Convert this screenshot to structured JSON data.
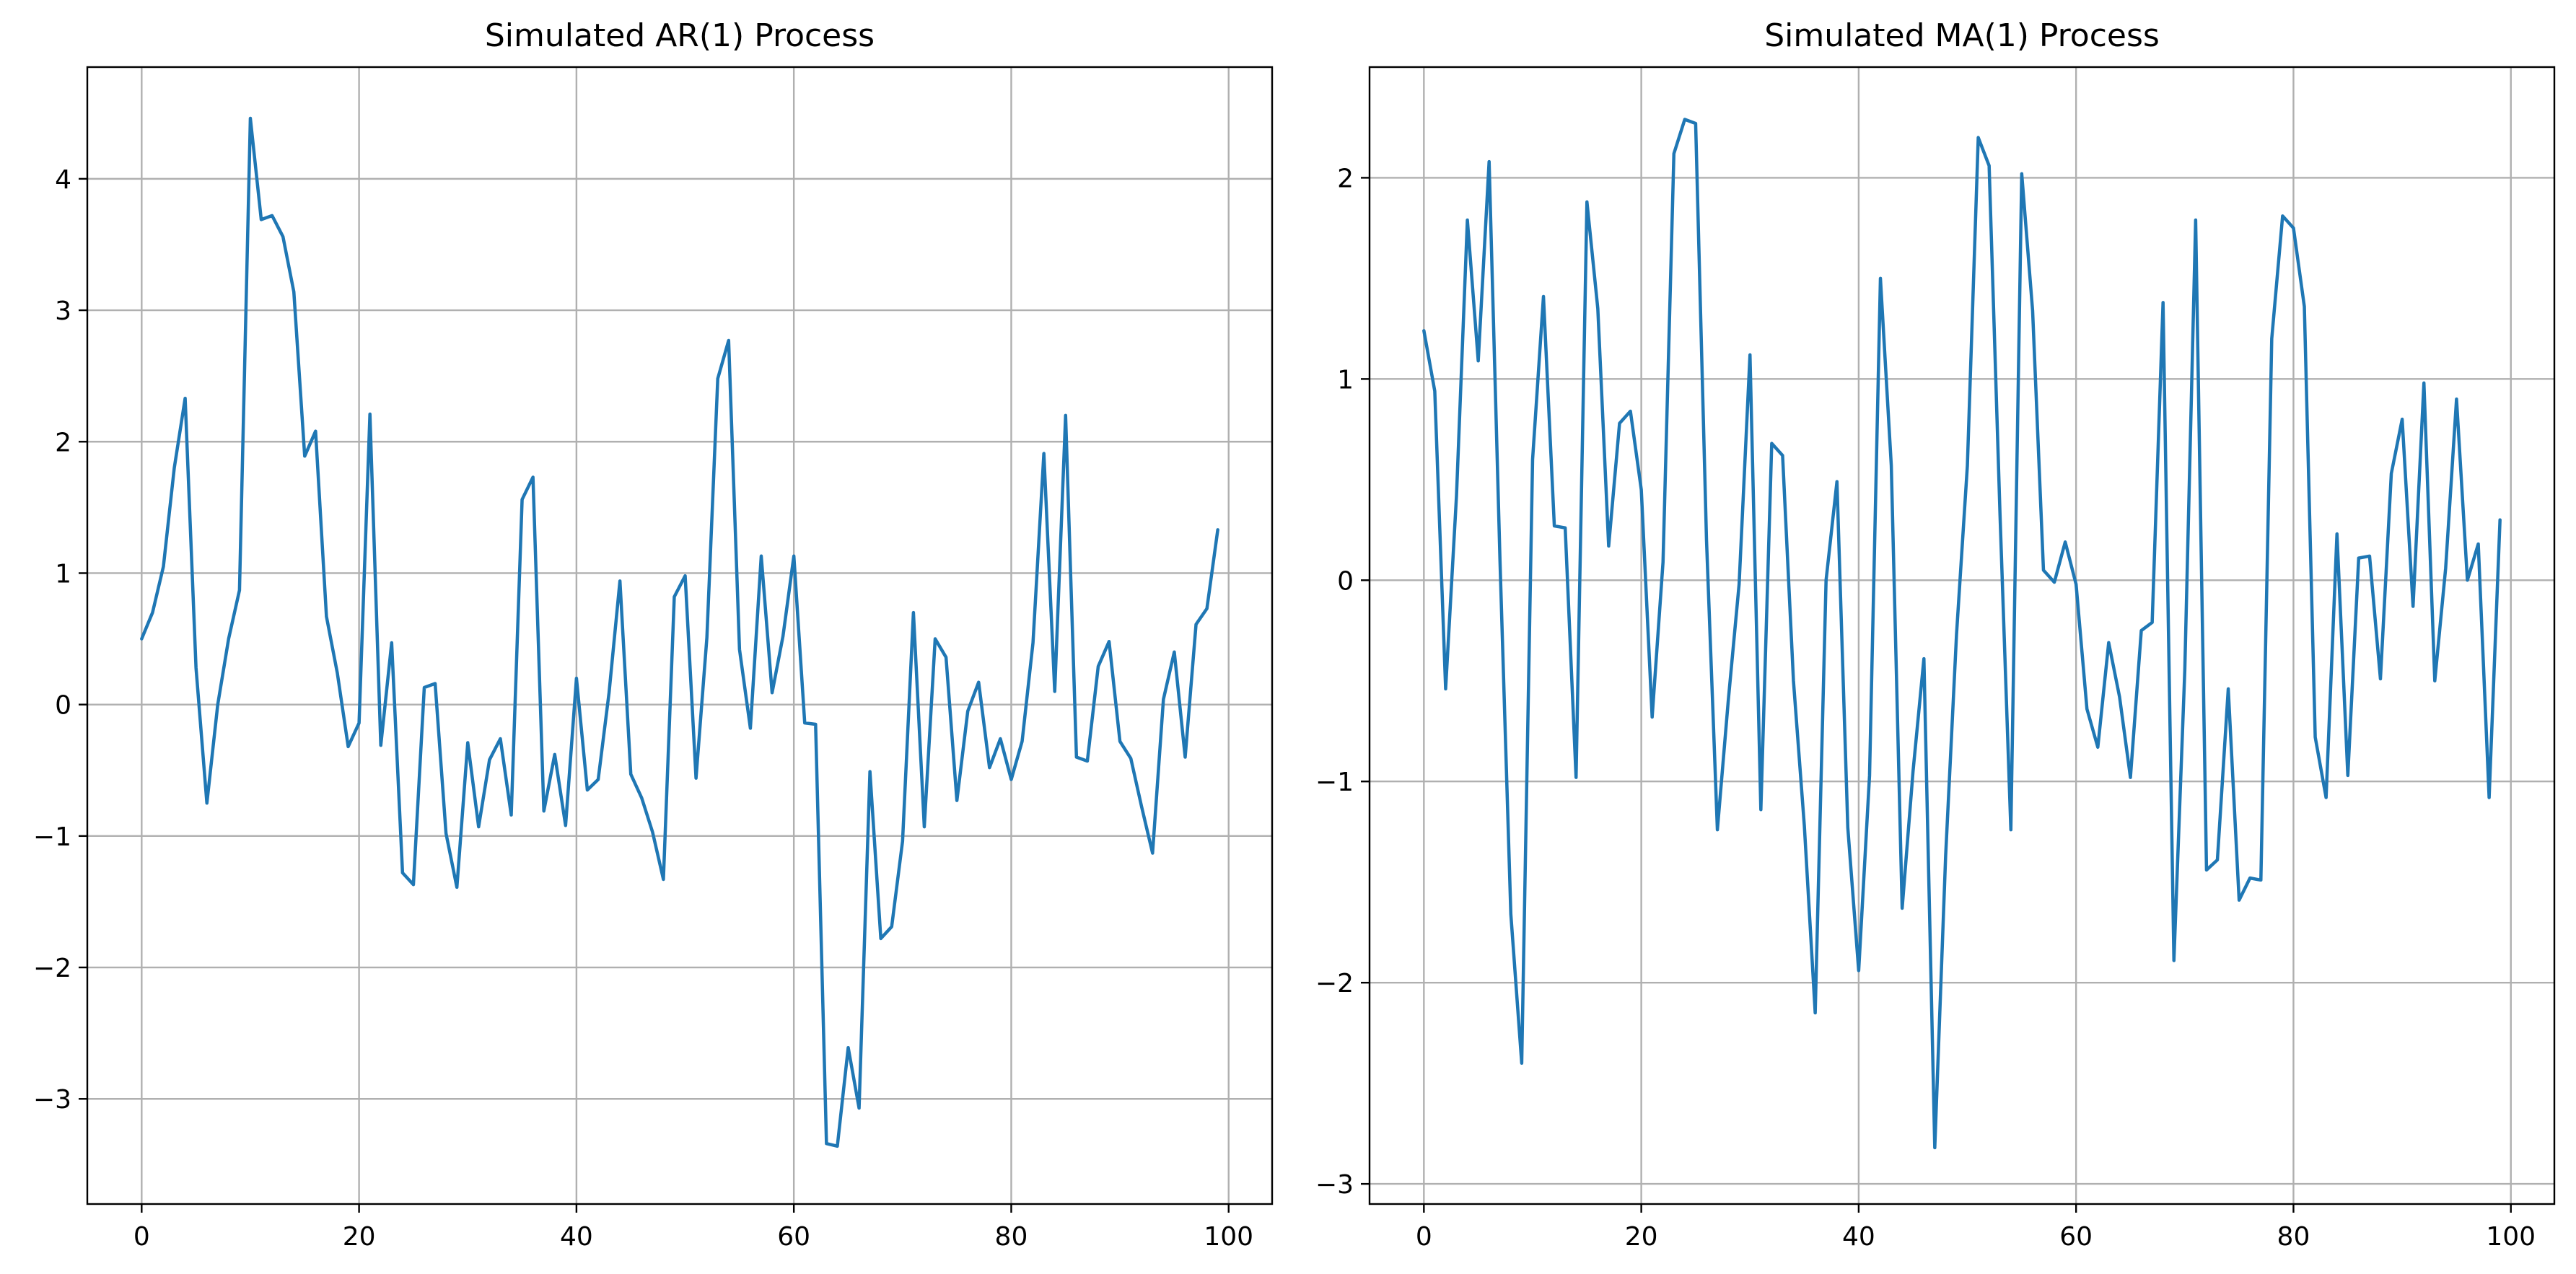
{
  "chart_data": [
    {
      "type": "line",
      "title": "Simulated AR(1) Process",
      "xlabel": "",
      "ylabel": "",
      "xlim": [
        -5,
        104
      ],
      "ylim": [
        -3.8,
        4.85
      ],
      "xticks": [
        0,
        20,
        40,
        60,
        80,
        100
      ],
      "yticks": [
        -3,
        -2,
        -1,
        0,
        1,
        2,
        3,
        4
      ],
      "grid": true,
      "color": "#1f77b4",
      "series": [
        {
          "values": [
            0.5,
            0.7,
            1.05,
            1.8,
            2.33,
            0.28,
            -0.75,
            0.0,
            0.5,
            0.87,
            4.46,
            3.69,
            3.72,
            3.56,
            3.14,
            1.89,
            2.08,
            0.67,
            0.24,
            -0.32,
            -0.14,
            2.21,
            -0.31,
            0.47,
            -1.28,
            -1.37,
            0.13,
            0.16,
            -0.98,
            -1.39,
            -0.29,
            -0.93,
            -0.42,
            -0.26,
            -0.84,
            1.56,
            1.73,
            -0.81,
            -0.38,
            -0.92,
            0.2,
            -0.65,
            -0.57,
            0.09,
            0.94,
            -0.53,
            -0.71,
            -0.97,
            -1.33,
            0.82,
            0.98,
            -0.56,
            0.51,
            2.48,
            2.77,
            0.42,
            -0.18,
            1.13,
            0.09,
            0.52,
            1.13,
            -0.14,
            -0.15,
            -3.34,
            -3.36,
            -2.61,
            -3.07,
            -0.51,
            -1.78,
            -1.69,
            -1.04,
            0.7,
            -0.93,
            0.5,
            0.36,
            -0.73,
            -0.05,
            0.17,
            -0.48,
            -0.26,
            -0.57,
            -0.28,
            0.47,
            1.91,
            0.1,
            2.2,
            -0.4,
            -0.43,
            0.29,
            0.48,
            -0.28,
            -0.41,
            -0.78,
            -1.13,
            0.04,
            0.4,
            -0.4,
            0.61,
            0.73,
            1.33
          ]
        }
      ]
    },
    {
      "type": "line",
      "title": "Simulated MA(1) Process",
      "xlabel": "",
      "ylabel": "",
      "xlim": [
        -5,
        104
      ],
      "ylim": [
        -3.1,
        2.55
      ],
      "xticks": [
        0,
        20,
        40,
        60,
        80,
        100
      ],
      "yticks": [
        -3,
        -2,
        -1,
        0,
        1,
        2
      ],
      "grid": true,
      "color": "#1f77b4",
      "series": [
        {
          "values": [
            1.24,
            0.94,
            -0.54,
            0.42,
            1.79,
            1.09,
            2.08,
            0.1,
            -1.66,
            -2.4,
            0.6,
            1.41,
            0.27,
            0.26,
            -0.98,
            1.88,
            1.35,
            0.17,
            0.78,
            0.84,
            0.45,
            -0.68,
            0.09,
            2.12,
            2.29,
            2.27,
            0.2,
            -1.24,
            -0.6,
            -0.02,
            1.12,
            -1.14,
            0.68,
            0.62,
            -0.5,
            -1.22,
            -2.15,
            0.0,
            0.49,
            -1.23,
            -1.94,
            -0.97,
            1.5,
            0.57,
            -1.63,
            -0.95,
            -0.39,
            -2.82,
            -1.37,
            -0.27,
            0.57,
            2.2,
            2.06,
            0.33,
            -1.24,
            2.02,
            1.34,
            0.05,
            -0.01,
            0.19,
            -0.02,
            -0.64,
            -0.83,
            -0.31,
            -0.58,
            -0.98,
            -0.25,
            -0.21,
            1.38,
            -1.89,
            -0.45,
            1.79,
            -1.44,
            -1.39,
            -0.54,
            -1.59,
            -1.48,
            -1.49,
            1.2,
            1.81,
            1.75,
            1.36,
            -0.78,
            -1.08,
            0.23,
            -0.97,
            0.11,
            0.12,
            -0.49,
            0.53,
            0.8,
            -0.13,
            0.98,
            -0.5,
            0.06,
            0.9,
            0.0,
            0.18,
            -1.08,
            0.3
          ]
        }
      ]
    }
  ]
}
